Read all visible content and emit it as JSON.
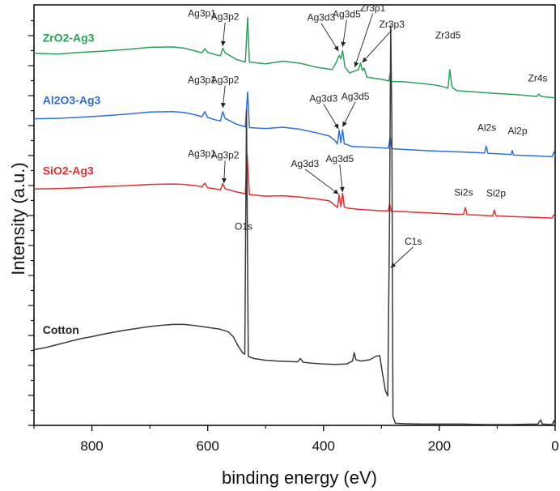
{
  "chart_data": {
    "type": "line",
    "title": "",
    "xlabel": "binding energy (eV)",
    "ylabel": "Intensity (a.u.)",
    "xlim": [
      900,
      0
    ],
    "ylim": [
      0,
      100
    ],
    "x_reversed": true,
    "y_ticks_labeled": false,
    "x_ticks": [
      800,
      600,
      400,
      200,
      0
    ],
    "x_tick_labels": [
      "800",
      "600",
      "400",
      "200",
      "0"
    ],
    "legend": "inline series labels",
    "series": [
      {
        "name": "ZrO2-Ag3",
        "color": "#2ca05a",
        "points": [
          [
            900,
            88.5
          ],
          [
            860,
            88.3
          ],
          [
            820,
            88.7
          ],
          [
            780,
            89.0
          ],
          [
            740,
            89.4
          ],
          [
            700,
            89.9
          ],
          [
            660,
            90.0
          ],
          [
            640,
            89.7
          ],
          [
            620,
            89.0
          ],
          [
            610,
            88.6
          ],
          [
            605,
            89.6
          ],
          [
            600,
            88.7
          ],
          [
            585,
            88.1
          ],
          [
            578,
            87.9
          ],
          [
            574,
            89.7
          ],
          [
            570,
            88.6
          ],
          [
            550,
            87.0
          ],
          [
            535,
            86.4
          ],
          [
            531,
            97.0
          ],
          [
            528,
            86.4
          ],
          [
            500,
            86.0
          ],
          [
            470,
            86.6
          ],
          [
            440,
            86.1
          ],
          [
            410,
            85.1
          ],
          [
            385,
            84.6
          ],
          [
            378,
            86.3
          ],
          [
            373,
            88.0
          ],
          [
            370,
            87.2
          ],
          [
            367,
            89.1
          ],
          [
            363,
            85.2
          ],
          [
            355,
            83.8
          ],
          [
            346,
            84.3
          ],
          [
            340,
            84.5
          ],
          [
            336,
            86.2
          ],
          [
            333,
            84.4
          ],
          [
            330,
            85.0
          ],
          [
            325,
            82.8
          ],
          [
            300,
            82.3
          ],
          [
            287,
            81.9
          ],
          [
            285,
            83.6
          ],
          [
            283,
            81.8
          ],
          [
            260,
            81.7
          ],
          [
            230,
            81.3
          ],
          [
            210,
            81.0
          ],
          [
            195,
            80.6
          ],
          [
            185,
            80.2
          ],
          [
            182,
            84.6
          ],
          [
            178,
            80.4
          ],
          [
            170,
            79.6
          ],
          [
            140,
            79.3
          ],
          [
            110,
            79.0
          ],
          [
            60,
            78.6
          ],
          [
            32,
            78.2
          ],
          [
            28,
            78.8
          ],
          [
            24,
            78.2
          ],
          [
            0,
            77.9
          ]
        ]
      },
      {
        "name": "Al2O3-Ag3",
        "color": "#2f6fd6",
        "points": [
          [
            900,
            72.9
          ],
          [
            860,
            73.0
          ],
          [
            820,
            73.3
          ],
          [
            780,
            73.6
          ],
          [
            740,
            74.0
          ],
          [
            700,
            74.5
          ],
          [
            660,
            74.6
          ],
          [
            640,
            74.4
          ],
          [
            620,
            73.8
          ],
          [
            610,
            73.4
          ],
          [
            605,
            74.6
          ],
          [
            600,
            73.2
          ],
          [
            585,
            72.6
          ],
          [
            578,
            72.4
          ],
          [
            574,
            74.6
          ],
          [
            570,
            73.0
          ],
          [
            550,
            71.6
          ],
          [
            535,
            71.0
          ],
          [
            531,
            79.3
          ],
          [
            528,
            70.8
          ],
          [
            500,
            70.6
          ],
          [
            470,
            70.9
          ],
          [
            440,
            70.4
          ],
          [
            410,
            69.5
          ],
          [
            390,
            68.8
          ],
          [
            380,
            67.7
          ],
          [
            376,
            66.9
          ],
          [
            373,
            70.2
          ],
          [
            370,
            67.2
          ],
          [
            367,
            70.3
          ],
          [
            364,
            66.9
          ],
          [
            360,
            66.8
          ],
          [
            350,
            66.3
          ],
          [
            330,
            66.2
          ],
          [
            300,
            66.0
          ],
          [
            288,
            65.9
          ],
          [
            285,
            68.5
          ],
          [
            282,
            65.8
          ],
          [
            260,
            65.6
          ],
          [
            230,
            65.4
          ],
          [
            200,
            65.2
          ],
          [
            160,
            65.0
          ],
          [
            122,
            64.8
          ],
          [
            119,
            66.4
          ],
          [
            116,
            64.7
          ],
          [
            100,
            64.6
          ],
          [
            76,
            64.4
          ],
          [
            74,
            65.4
          ],
          [
            72,
            64.3
          ],
          [
            40,
            64.1
          ],
          [
            5,
            63.9
          ],
          [
            2,
            65.0
          ],
          [
            0,
            64.0
          ]
        ]
      },
      {
        "name": "SiO2-Ag3",
        "color": "#e03030",
        "points": [
          [
            900,
            56.2
          ],
          [
            860,
            56.3
          ],
          [
            820,
            56.5
          ],
          [
            780,
            56.8
          ],
          [
            740,
            57.0
          ],
          [
            700,
            57.3
          ],
          [
            660,
            57.4
          ],
          [
            640,
            57.3
          ],
          [
            620,
            57.0
          ],
          [
            610,
            56.7
          ],
          [
            605,
            57.6
          ],
          [
            600,
            56.5
          ],
          [
            585,
            56.2
          ],
          [
            578,
            56.0
          ],
          [
            574,
            57.5
          ],
          [
            570,
            56.3
          ],
          [
            550,
            55.5
          ],
          [
            535,
            55.1
          ],
          [
            532,
            64.5
          ],
          [
            528,
            54.9
          ],
          [
            500,
            54.5
          ],
          [
            470,
            54.6
          ],
          [
            440,
            54.3
          ],
          [
            410,
            53.8
          ],
          [
            390,
            53.4
          ],
          [
            381,
            52.4
          ],
          [
            376,
            51.8
          ],
          [
            373,
            54.8
          ],
          [
            370,
            52.0
          ],
          [
            367,
            55.2
          ],
          [
            364,
            51.9
          ],
          [
            360,
            51.7
          ],
          [
            340,
            51.4
          ],
          [
            320,
            51.2
          ],
          [
            300,
            51.0
          ],
          [
            288,
            51.0
          ],
          [
            286,
            52.7
          ],
          [
            283,
            50.9
          ],
          [
            260,
            50.8
          ],
          [
            230,
            50.6
          ],
          [
            200,
            50.4
          ],
          [
            170,
            50.2
          ],
          [
            158,
            50.2
          ],
          [
            155,
            51.8
          ],
          [
            152,
            50.1
          ],
          [
            130,
            50.0
          ],
          [
            108,
            49.8
          ],
          [
            105,
            51.2
          ],
          [
            102,
            49.8
          ],
          [
            80,
            49.7
          ],
          [
            40,
            49.5
          ],
          [
            5,
            49.3
          ],
          [
            2,
            50.1
          ],
          [
            0,
            49.4
          ]
        ]
      },
      {
        "name": "Cotton",
        "color": "#3a3a3a",
        "points": [
          [
            900,
            18.0
          ],
          [
            880,
            18.5
          ],
          [
            860,
            19.2
          ],
          [
            840,
            19.9
          ],
          [
            820,
            20.6
          ],
          [
            800,
            21.1
          ],
          [
            780,
            21.7
          ],
          [
            760,
            22.2
          ],
          [
            740,
            22.7
          ],
          [
            720,
            23.1
          ],
          [
            700,
            23.5
          ],
          [
            680,
            23.8
          ],
          [
            660,
            24.0
          ],
          [
            640,
            24.0
          ],
          [
            620,
            23.7
          ],
          [
            600,
            23.3
          ],
          [
            580,
            22.9
          ],
          [
            565,
            22.3
          ],
          [
            556,
            21.1
          ],
          [
            548,
            19.0
          ],
          [
            540,
            17.3
          ],
          [
            536,
            16.9
          ],
          [
            533,
            75.0
          ],
          [
            530,
            16.4
          ],
          [
            520,
            15.9
          ],
          [
            500,
            15.5
          ],
          [
            480,
            15.3
          ],
          [
            460,
            15.2
          ],
          [
            445,
            15.1
          ],
          [
            440,
            15.9
          ],
          [
            435,
            15.0
          ],
          [
            420,
            14.8
          ],
          [
            400,
            14.6
          ],
          [
            380,
            14.5
          ],
          [
            360,
            14.6
          ],
          [
            350,
            15.3
          ],
          [
            347,
            17.3
          ],
          [
            344,
            15.6
          ],
          [
            335,
            15.3
          ],
          [
            320,
            15.6
          ],
          [
            310,
            16.4
          ],
          [
            303,
            16.6
          ],
          [
            298,
            12.2
          ],
          [
            293,
            8.2
          ],
          [
            289,
            7.0
          ],
          [
            286,
            50.0
          ],
          [
            284,
            95.0
          ],
          [
            282,
            72.0
          ],
          [
            280,
            2.2
          ],
          [
            276,
            0.5
          ],
          [
            260,
            0.4
          ],
          [
            230,
            0.3
          ],
          [
            200,
            0.3
          ],
          [
            160,
            0.3
          ],
          [
            120,
            0.2
          ],
          [
            80,
            0.2
          ],
          [
            30,
            0.3
          ],
          [
            25,
            1.3
          ],
          [
            22,
            0.3
          ],
          [
            5,
            0.2
          ],
          [
            2,
            1.1
          ],
          [
            0,
            0.2
          ]
        ]
      }
    ],
    "series_labels": [
      {
        "text": "ZrO2-Ag3",
        "color": "#2ca05a",
        "x": 885,
        "y": 91.2
      },
      {
        "text": "Al2O3-Ag3",
        "color": "#2f6fd6",
        "x": 885,
        "y": 76.4
      },
      {
        "text": "SiO2-Ag3",
        "color": "#e03030",
        "x": 885,
        "y": 59.6
      },
      {
        "text": "Cotton",
        "color": "#222222",
        "x": 885,
        "y": 21.8
      }
    ],
    "annotations": [
      {
        "text": "Ag3p1",
        "x": 610,
        "y": 97.2
      },
      {
        "text": "Ag3p2",
        "x": 570,
        "y": 96.4,
        "arrow_to": [
          574,
          90.2
        ]
      },
      {
        "text": "Ag3d3",
        "x": 404,
        "y": 96.2,
        "arrow_to": [
          374,
          89.0
        ]
      },
      {
        "text": "Ag3d5",
        "x": 360,
        "y": 97.0,
        "arrow_to": [
          367,
          90.0
        ]
      },
      {
        "text": "Zr3p1",
        "x": 315,
        "y": 98.5,
        "arrow_to": [
          346,
          85.2
        ]
      },
      {
        "text": "Zr3p3",
        "x": 282,
        "y": 94.6,
        "arrow_to": [
          333,
          86.3
        ]
      },
      {
        "text": "Zr3d5",
        "x": 185,
        "y": 92.0
      },
      {
        "text": "Zr4s",
        "x": 30,
        "y": 81.8
      },
      {
        "text": "Ag3p1",
        "x": 610,
        "y": 81.4
      },
      {
        "text": "Ag3p2",
        "x": 570,
        "y": 81.4,
        "arrow_to": [
          574,
          75.5
        ]
      },
      {
        "text": "Ag3d3",
        "x": 400,
        "y": 77.0,
        "arrow_to": [
          374,
          70.5
        ]
      },
      {
        "text": "Ag3d5",
        "x": 345,
        "y": 77.5,
        "arrow_to": [
          367,
          71.0
        ]
      },
      {
        "text": "Al2s",
        "x": 118,
        "y": 70.0
      },
      {
        "text": "Al2p",
        "x": 65,
        "y": 69.3
      },
      {
        "text": "Ag3p1",
        "x": 610,
        "y": 63.9
      },
      {
        "text": "Ag3p2",
        "x": 570,
        "y": 63.5,
        "arrow_to": [
          572,
          57.6
        ]
      },
      {
        "text": "Ag3d3",
        "x": 432,
        "y": 61.5,
        "arrow_to": [
          374,
          55.0
        ]
      },
      {
        "text": "Ag3d5",
        "x": 372,
        "y": 62.6,
        "arrow_to": [
          367,
          55.5
        ]
      },
      {
        "text": "Si2s",
        "x": 158,
        "y": 54.6
      },
      {
        "text": "Si2p",
        "x": 102,
        "y": 54.4
      },
      {
        "text": "O1s",
        "x": 538,
        "y": 46.5
      },
      {
        "text": "C1s",
        "x": 245,
        "y": 43.0,
        "arrow_to": [
          284,
          37.5
        ]
      }
    ]
  }
}
